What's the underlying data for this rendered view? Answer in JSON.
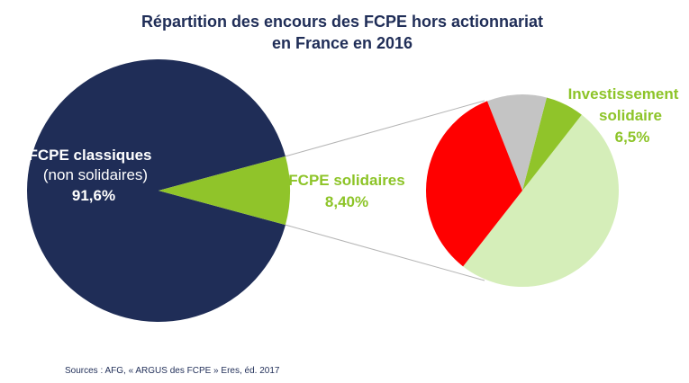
{
  "chart_data": {
    "type": "pie",
    "title_line1": "Répartition des encours des FCPE hors actionnariat",
    "title_line2": "en France en 2016",
    "main_pie": {
      "slices": [
        {
          "label": "FCPE classiques",
          "sublabel": "(non solidaires)",
          "value": 91.6,
          "value_text": "91,6%",
          "color": "#1f2d57"
        },
        {
          "label": "FCPE solidaires",
          "value": 8.4,
          "value_text": "8,40%",
          "color": "#90c42a"
        }
      ]
    },
    "breakdown_pie": {
      "slices": [
        {
          "value": 50.0,
          "color": "#d5eeb9"
        },
        {
          "label": "Investissement solidaire",
          "value": 6.5,
          "value_text": "6,5%",
          "color": "#90c42a"
        },
        {
          "value": 10.0,
          "color": "#c4c4c4"
        },
        {
          "value": 33.5,
          "color": "#ff0000"
        }
      ]
    },
    "colors": {
      "title": "#1f2d57",
      "label_dark": "#ffffff",
      "label_green": "#8dc428",
      "connector": "#b5b5b5"
    },
    "source": "Sources : AFG, « ARGUS des FCPE » Eres, éd. 2017"
  }
}
